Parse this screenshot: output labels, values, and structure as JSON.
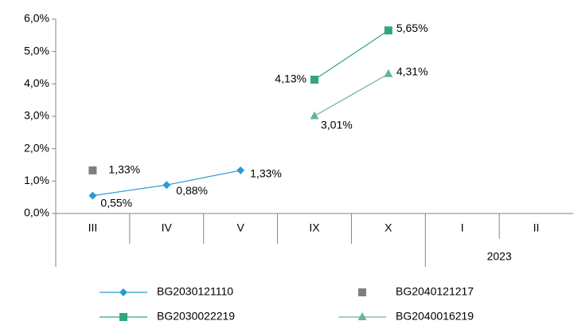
{
  "chart_data": {
    "type": "line",
    "categories": [
      "III",
      "IV",
      "V",
      "IX",
      "X",
      "I",
      "II"
    ],
    "category_groups": [
      null,
      null,
      null,
      null,
      null,
      "2023",
      "2023"
    ],
    "series": [
      {
        "name": "BG2030121110",
        "color": "#2a9bd4",
        "marker": "diamond",
        "values": [
          0.55,
          0.88,
          1.33,
          null,
          null,
          null,
          null
        ],
        "value_labels": [
          "0,55%",
          "0,88%",
          "1,33%",
          null,
          null,
          null,
          null
        ]
      },
      {
        "name": "BG2040121217",
        "color": "#7f7f7f",
        "marker": "square",
        "values": [
          1.33,
          null,
          null,
          null,
          null,
          null,
          null
        ],
        "value_labels": [
          "1,33%",
          null,
          null,
          null,
          null,
          null,
          null
        ]
      },
      {
        "name": "BG2030022219",
        "color": "#2fa67c",
        "marker": "square",
        "values": [
          null,
          null,
          null,
          4.13,
          5.65,
          null,
          null
        ],
        "value_labels": [
          null,
          null,
          null,
          "4,13%",
          "5,65%",
          null,
          null
        ]
      },
      {
        "name": "BG2040016219",
        "color": "#6ab0a0",
        "marker": "triangle",
        "values": [
          null,
          null,
          null,
          3.01,
          4.31,
          null,
          null
        ],
        "value_labels": [
          null,
          null,
          null,
          "3,01%",
          "4,31%",
          null,
          null
        ]
      }
    ],
    "ylim": [
      0,
      6
    ],
    "yticks": [
      {
        "value": 0,
        "label": "0,0%"
      },
      {
        "value": 1,
        "label": "1,0%"
      },
      {
        "value": 2,
        "label": "2,0%"
      },
      {
        "value": 3,
        "label": "3,0%"
      },
      {
        "value": 4,
        "label": "4,0%"
      },
      {
        "value": 5,
        "label": "5,0%"
      },
      {
        "value": 6,
        "label": "6,0%"
      }
    ],
    "grid": false,
    "legend": "bottom"
  }
}
